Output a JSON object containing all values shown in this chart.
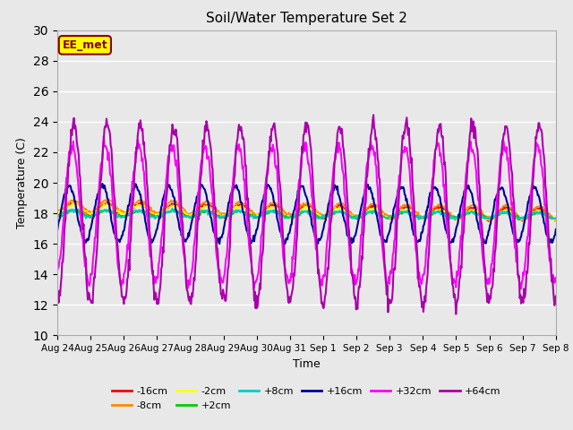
{
  "title": "Soil/Water Temperature Set 2",
  "xlabel": "Time",
  "ylabel": "Temperature (C)",
  "ylim": [
    10,
    30
  ],
  "yticks": [
    10,
    12,
    14,
    16,
    18,
    20,
    22,
    24,
    26,
    28,
    30
  ],
  "fig_bg_color": "#e8e8e8",
  "plot_bg_color": "#e8e8e8",
  "annotation_text": "EE_met",
  "annotation_bg": "#ffff00",
  "annotation_border": "#8b0000",
  "series_order": [
    "-16cm",
    "-8cm",
    "-2cm",
    "+2cm",
    "+8cm",
    "+16cm",
    "+32cm",
    "+64cm"
  ],
  "series": {
    "-16cm": {
      "color": "#ff0000",
      "lw": 1.2
    },
    "-8cm": {
      "color": "#ff8800",
      "lw": 1.2
    },
    "-2cm": {
      "color": "#ffff00",
      "lw": 1.2
    },
    "+2cm": {
      "color": "#00cc00",
      "lw": 1.2
    },
    "+8cm": {
      "color": "#00cccc",
      "lw": 1.2
    },
    "+16cm": {
      "color": "#000099",
      "lw": 1.5
    },
    "+32cm": {
      "color": "#ff00ff",
      "lw": 1.5
    },
    "+64cm": {
      "color": "#aa00aa",
      "lw": 1.5
    }
  },
  "base": 18.0,
  "base_offset": {
    "-16cm": 0.3,
    "-8cm": 0.5,
    "-2cm": 0.3,
    "+2cm": 0.0,
    "+8cm": 0.0,
    "+16cm": 0.0,
    "+32cm": 0.0,
    "+64cm": 0.0
  },
  "drift": {
    "-16cm": -0.025,
    "-8cm": -0.03,
    "-2cm": -0.03,
    "+2cm": -0.01,
    "+8cm": -0.01,
    "+16cm": -0.005,
    "+32cm": -0.005,
    "+64cm": -0.002
  },
  "amp": {
    "-16cm": 0.4,
    "-8cm": 0.4,
    "-2cm": 0.3,
    "+2cm": 0.2,
    "+8cm": 0.2,
    "+16cm": 1.8,
    "+32cm": 4.5,
    "+64cm": 5.8
  },
  "phase_shift": {
    "-16cm": 0.0,
    "-8cm": 0.0,
    "-2cm": 0.0,
    "+2cm": 0.0,
    "+8cm": 0.1,
    "+16cm": 0.15,
    "+32cm": 0.05,
    "+64cm": 0.0
  },
  "num_days": 15,
  "xtick_labels": [
    "Aug 24",
    "Aug 25",
    "Aug 26",
    "Aug 27",
    "Aug 28",
    "Aug 29",
    "Aug 30",
    "Aug 31",
    "Sep 1",
    "Sep 2",
    "Sep 3",
    "Sep 4",
    "Sep 5",
    "Sep 6",
    "Sep 7",
    "Sep 8"
  ]
}
